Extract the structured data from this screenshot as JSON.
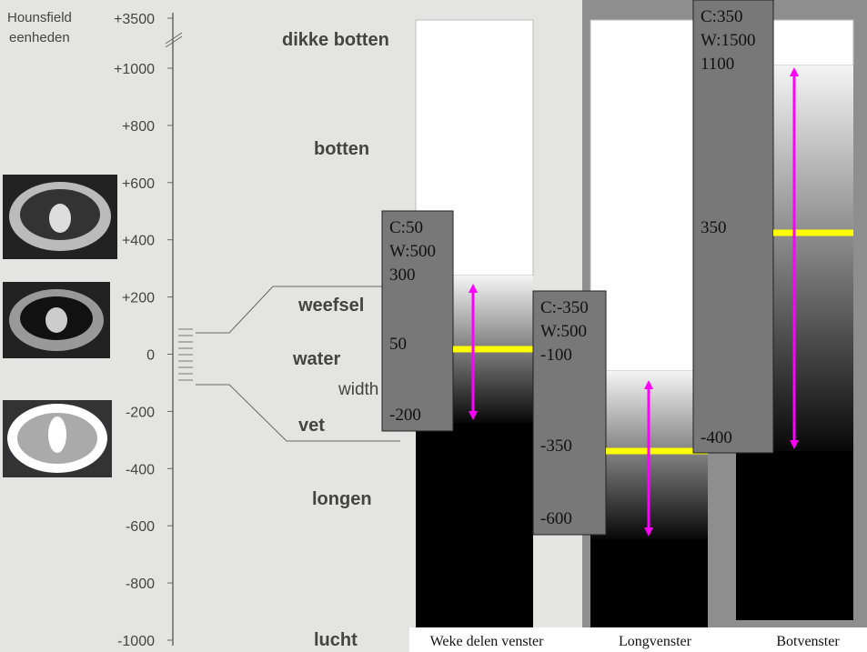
{
  "scale": {
    "title": [
      "Hounsfield",
      "eenheden"
    ],
    "labels": [
      "+3500",
      "+1000",
      "+800",
      "+600",
      "+400",
      "+200",
      "0",
      "-200",
      "-400",
      "-600",
      "-800",
      "-1000"
    ]
  },
  "tissues": {
    "dikke_botten": "dikke botten",
    "botten": "botten",
    "weefsel": "weefsel",
    "water": "water",
    "width": "width",
    "vet": "vet",
    "longen": "longen",
    "lucht": "lucht"
  },
  "windows": [
    {
      "center": "C:50",
      "width": "W:500",
      "top": "300",
      "mid": "50",
      "bottom": "-200",
      "caption": "Weke delen  venster"
    },
    {
      "center": "C:-350",
      "width": "W:500",
      "top": "-100",
      "mid": "-350",
      "bottom": "-600",
      "caption": "Longvenster"
    },
    {
      "center": "C:350",
      "width": "W:1500",
      "top": "1100",
      "mid": "350",
      "bottom": "-400",
      "caption": "Botvenster"
    }
  ]
}
